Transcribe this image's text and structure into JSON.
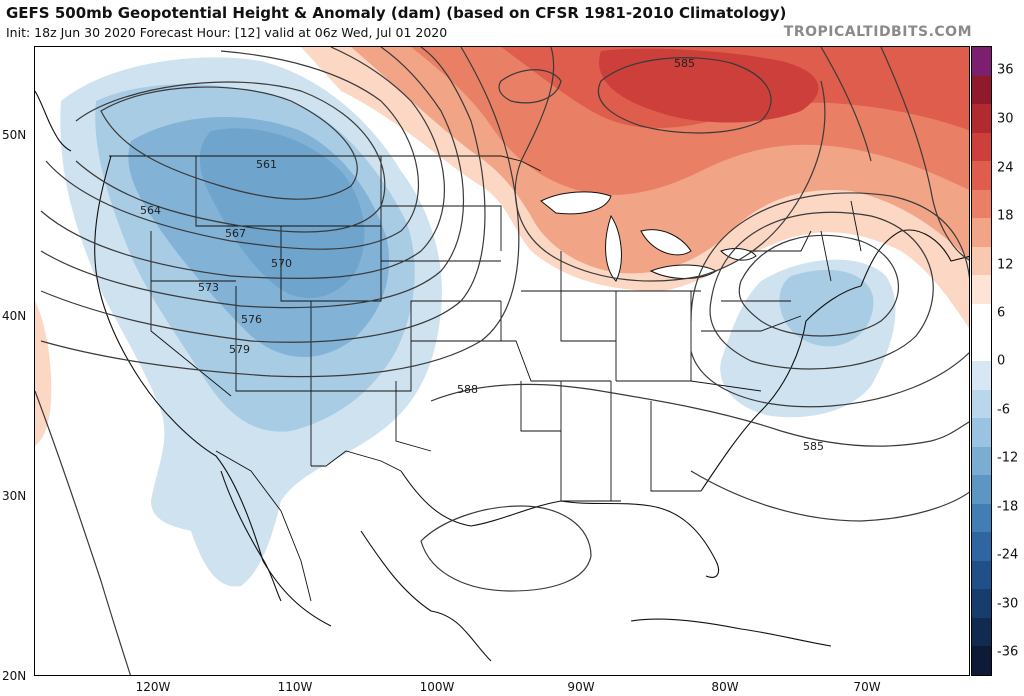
{
  "header": {
    "title": "GEFS 500mb Geopotential Height & Anomaly (dam) (based on CFSR 1981-2010 Climatology)",
    "subtitle": "Init: 18z Jun 30 2020   Forecast Hour: [12]   valid at 06z Wed, Jul 01 2020",
    "brand": "TROPICALTIDBITS.COM"
  },
  "axes": {
    "lat_labels": [
      "50N",
      "40N",
      "30N",
      "20N"
    ],
    "lon_labels": [
      "120W",
      "110W",
      "100W",
      "90W",
      "80W",
      "70W"
    ]
  },
  "contour_labels": [
    "561",
    "564",
    "567",
    "570",
    "573",
    "576",
    "579",
    "585",
    "588",
    "585"
  ],
  "colorbar": {
    "labels": [
      "36",
      "30",
      "24",
      "18",
      "12",
      "6",
      "0",
      "-6",
      "-12",
      "-18",
      "-24",
      "-30",
      "-36"
    ],
    "colors": [
      "#7b1f6e",
      "#8e1a2c",
      "#b02a2f",
      "#cc3f3a",
      "#de5d4c",
      "#e98066",
      "#f2a487",
      "#f9c8b0",
      "#fde4d6",
      "#ffffff",
      "#ffffff",
      "#d7e7f3",
      "#b9d6ea",
      "#99c3e0",
      "#79add2",
      "#5c96c3",
      "#417eb3",
      "#2d66a0",
      "#1f5088",
      "#173d6c",
      "#112a50",
      "#0d1b36"
    ]
  }
}
